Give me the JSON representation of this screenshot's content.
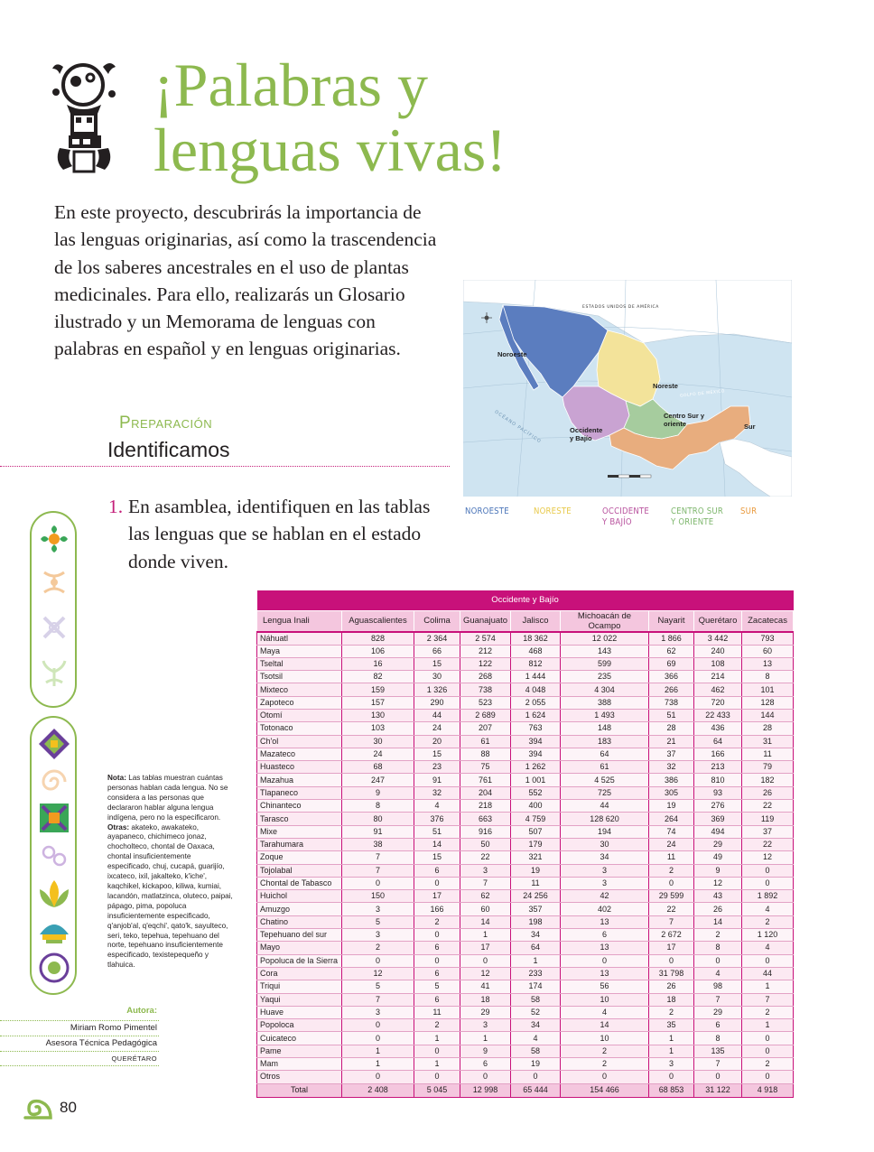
{
  "header": {
    "title_line1": "¡Palabras y",
    "title_line2": "lenguas vivas!"
  },
  "intro": "En este proyecto, descubrirás la importancia de las lenguas originarias, así como la trascendencia de los saberes ancestrales en el uso de plantas medicinales. Para ello, realizarás un Glosario ilustrado y un Memorama de lenguas con palabras en español y en lenguas originarias.",
  "section": {
    "label": "Preparación",
    "heading": "Identificamos"
  },
  "step": {
    "number": "1.",
    "text": "En asamblea, identifiquen en las tablas las lenguas que se hablan en el estado donde viven."
  },
  "map": {
    "country_label": "ESTADOS UNIDOS DE AMÉRICA",
    "gulf_label": "GOLFO DE MÉXICO",
    "ocean_label": "OCÉANO PACÍFICO",
    "regions": {
      "noroeste": "Noroeste",
      "noreste": "Noreste",
      "occidente": "Occidente y Bajío",
      "centro": "Centro Sur y oriente",
      "sur": "Sur"
    },
    "colors": {
      "noroeste": "#5b7dbf",
      "noreste": "#f3e39a",
      "occidente": "#c9a3d2",
      "centro": "#a6cc9e",
      "sur": "#e8ad7e",
      "water": "#cfe4f1",
      "land": "#ffffff"
    },
    "legend": [
      {
        "label": "NOROESTE",
        "color": "#4a74b8"
      },
      {
        "label": "NORESTE",
        "color": "#e8c94a"
      },
      {
        "label": "OCCIDENTE Y BAJÍO",
        "color": "#b9549f"
      },
      {
        "label": "CENTRO SUR Y ORIENTE",
        "color": "#7db66c"
      },
      {
        "label": "SUR",
        "color": "#e99a3e"
      }
    ]
  },
  "note": {
    "label": "Nota:",
    "text": "Las tablas muestran cuántas personas hablan cada lengua. No se considera a las personas que declararon hablar alguna lengua indígena, pero no la especificaron.",
    "others_label": "Otras:",
    "others_text": "akateko, awakateko, ayapaneco, chichimeco jonaz, chocholteco, chontal de Oaxaca, chontal insuficientemente especificado, chuj, cucapá, guarijío, ixcateco, ixil, jakalteko, k'iche', kaqchikel, kickapoo, kiliwa, kumiai, lacandón, matlatzinca, oluteco, paipai, pápago, pima, popoluca insuficientemente especificado, q'anjob'al, q'eqchi', qato'k, sayulteco, seri, teko, tepehua, tepehuano del norte, tepehuano insuficientemente especificado, texistepequeño y tlahuica."
  },
  "author": {
    "label": "Autora:",
    "name": "Miriam Romo Pimentel",
    "role": "Asesora Técnica Pedagógica",
    "state": "QUERÉTARO"
  },
  "page_number": "80",
  "table": {
    "title": "Occidente y Bajío",
    "columns": [
      "Lengua Inali",
      "Aguascalientes",
      "Colima",
      "Guanajuato",
      "Jalisco",
      "Michoacán de Ocampo",
      "Nayarit",
      "Querétaro",
      "Zacatecas"
    ],
    "rows": [
      [
        "Náhuatl",
        "828",
        "2 364",
        "2 574",
        "18 362",
        "12 022",
        "1 866",
        "3 442",
        "793"
      ],
      [
        "Maya",
        "106",
        "66",
        "212",
        "468",
        "143",
        "62",
        "240",
        "60"
      ],
      [
        "Tseltal",
        "16",
        "15",
        "122",
        "812",
        "599",
        "69",
        "108",
        "13"
      ],
      [
        "Tsotsil",
        "82",
        "30",
        "268",
        "1 444",
        "235",
        "366",
        "214",
        "8"
      ],
      [
        "Mixteco",
        "159",
        "1 326",
        "738",
        "4 048",
        "4 304",
        "266",
        "462",
        "101"
      ],
      [
        "Zapoteco",
        "157",
        "290",
        "523",
        "2 055",
        "388",
        "738",
        "720",
        "128"
      ],
      [
        "Otomí",
        "130",
        "44",
        "2 689",
        "1 624",
        "1 493",
        "51",
        "22 433",
        "144"
      ],
      [
        "Totonaco",
        "103",
        "24",
        "207",
        "763",
        "148",
        "28",
        "436",
        "28"
      ],
      [
        "Ch'ol",
        "30",
        "20",
        "61",
        "394",
        "183",
        "21",
        "64",
        "31"
      ],
      [
        "Mazateco",
        "24",
        "15",
        "88",
        "394",
        "64",
        "37",
        "166",
        "11"
      ],
      [
        "Huasteco",
        "68",
        "23",
        "75",
        "1 262",
        "61",
        "32",
        "213",
        "79"
      ],
      [
        "Mazahua",
        "247",
        "91",
        "761",
        "1 001",
        "4 525",
        "386",
        "810",
        "182"
      ],
      [
        "Tlapaneco",
        "9",
        "32",
        "204",
        "552",
        "725",
        "305",
        "93",
        "26"
      ],
      [
        "Chinanteco",
        "8",
        "4",
        "218",
        "400",
        "44",
        "19",
        "276",
        "22"
      ],
      [
        "Tarasco",
        "80",
        "376",
        "663",
        "4 759",
        "128 620",
        "264",
        "369",
        "119"
      ],
      [
        "Mixe",
        "91",
        "51",
        "916",
        "507",
        "194",
        "74",
        "494",
        "37"
      ],
      [
        "Tarahumara",
        "38",
        "14",
        "50",
        "179",
        "30",
        "24",
        "29",
        "22"
      ],
      [
        "Zoque",
        "7",
        "15",
        "22",
        "321",
        "34",
        "11",
        "49",
        "12"
      ],
      [
        "Tojolabal",
        "7",
        "6",
        "3",
        "19",
        "3",
        "2",
        "9",
        "0"
      ],
      [
        "Chontal de Tabasco",
        "0",
        "0",
        "7",
        "11",
        "3",
        "0",
        "12",
        "0"
      ],
      [
        "Huichol",
        "150",
        "17",
        "62",
        "24 256",
        "42",
        "29 599",
        "43",
        "1 892"
      ],
      [
        "Amuzgo",
        "3",
        "166",
        "60",
        "357",
        "402",
        "22",
        "26",
        "4"
      ],
      [
        "Chatino",
        "5",
        "2",
        "14",
        "198",
        "13",
        "7",
        "14",
        "2"
      ],
      [
        "Tepehuano del sur",
        "3",
        "0",
        "1",
        "34",
        "6",
        "2 672",
        "2",
        "1 120"
      ],
      [
        "Mayo",
        "2",
        "6",
        "17",
        "64",
        "13",
        "17",
        "8",
        "4"
      ],
      [
        "Popoluca de la Sierra",
        "0",
        "0",
        "0",
        "1",
        "0",
        "0",
        "0",
        "0"
      ],
      [
        "Cora",
        "12",
        "6",
        "12",
        "233",
        "13",
        "31 798",
        "4",
        "44"
      ],
      [
        "Triqui",
        "5",
        "5",
        "41",
        "174",
        "56",
        "26",
        "98",
        "1"
      ],
      [
        "Yaqui",
        "7",
        "6",
        "18",
        "58",
        "10",
        "18",
        "7",
        "7"
      ],
      [
        "Huave",
        "3",
        "11",
        "29",
        "52",
        "4",
        "2",
        "29",
        "2"
      ],
      [
        "Popoloca",
        "0",
        "2",
        "3",
        "34",
        "14",
        "35",
        "6",
        "1"
      ],
      [
        "Cuicateco",
        "0",
        "1",
        "1",
        "4",
        "10",
        "1",
        "8",
        "0"
      ],
      [
        "Pame",
        "1",
        "0",
        "9",
        "58",
        "2",
        "1",
        "135",
        "0"
      ],
      [
        "Mam",
        "1",
        "1",
        "6",
        "19",
        "2",
        "3",
        "7",
        "2"
      ],
      [
        "Otros",
        "0",
        "0",
        "0",
        "0",
        "0",
        "0",
        "0",
        "0"
      ]
    ],
    "total": [
      "Total",
      "2 408",
      "5 045",
      "12 998",
      "65 444",
      "154 466",
      "68 853",
      "31 122",
      "4 918"
    ]
  }
}
